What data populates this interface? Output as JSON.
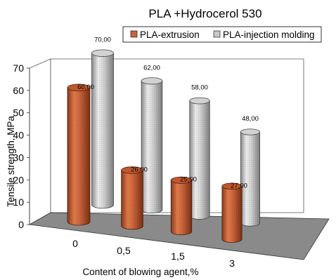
{
  "chart_data": {
    "type": "bar",
    "title": "PLA +Hydrocerol 530",
    "xlabel": "Content of blowing agent,%",
    "ylabel": "Tensile strength, MPa",
    "categories": [
      "0",
      "0,5",
      "1,5",
      "3"
    ],
    "yticks": [
      "0",
      "10",
      "20",
      "30",
      "40",
      "50",
      "60",
      "70"
    ],
    "ylim": [
      0,
      70
    ],
    "grid": false,
    "legend_position": "top-right",
    "style": "3d-cylinders",
    "series": [
      {
        "name": "PLA-extrusion",
        "color": "#c8643c",
        "values": [
          60,
          26,
          25,
          27
        ],
        "labels": [
          "60,00",
          "26,00",
          "25,00",
          "27,00"
        ]
      },
      {
        "name": "PLA-injection molding",
        "color": "#c8c8c8",
        "values": [
          70,
          62,
          58,
          48
        ],
        "labels": [
          "70,00",
          "62,00",
          "58,00",
          "48,00"
        ]
      }
    ],
    "floor_color": "#8a8a8a"
  }
}
